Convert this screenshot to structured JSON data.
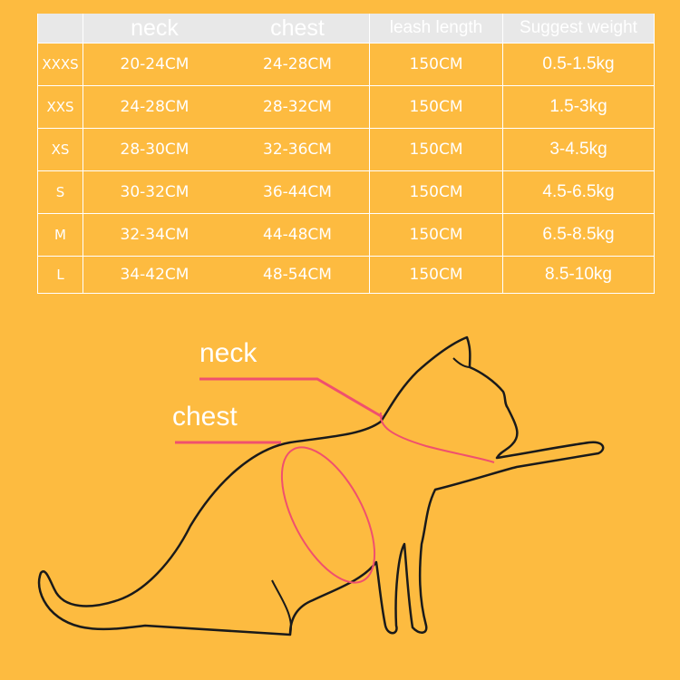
{
  "table": {
    "headers": [
      "",
      "neck",
      "chest",
      "leash length",
      "Suggest weight"
    ],
    "rows": [
      [
        "XXXS",
        "20-24CM",
        "24-28CM",
        "150CM",
        "0.5-1.5kg"
      ],
      [
        "XXS",
        "24-28CM",
        "28-32CM",
        "150CM",
        "1.5-3kg"
      ],
      [
        "XS",
        "28-30CM",
        "32-36CM",
        "150CM",
        "3-4.5kg"
      ],
      [
        "S",
        "30-32CM",
        "36-44CM",
        "150CM",
        "4.5-6.5kg"
      ],
      [
        "M",
        "32-34CM",
        "44-48CM",
        "150CM",
        "6.5-8.5kg"
      ],
      [
        "L",
        "34-42CM",
        "48-54CM",
        "150CM",
        "8.5-10kg"
      ]
    ]
  },
  "diagram": {
    "neck_label": "neck",
    "chest_label": "chest",
    "pointer_color": "#f0506e",
    "background_color": "#fdbb40"
  }
}
